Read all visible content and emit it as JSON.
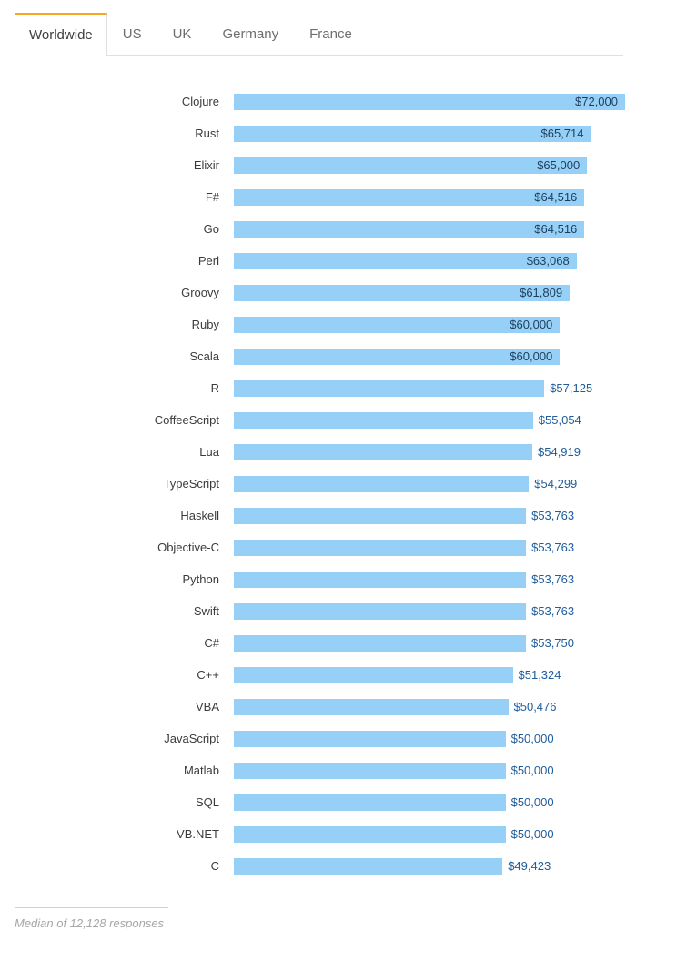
{
  "tabs": {
    "items": [
      {
        "label": "Worldwide",
        "active": true
      },
      {
        "label": "US",
        "active": false
      },
      {
        "label": "UK",
        "active": false
      },
      {
        "label": "Germany",
        "active": false
      },
      {
        "label": "France",
        "active": false
      }
    ]
  },
  "colors": {
    "accent_orange": "#f5a623",
    "bar_fill": "#97d0f6",
    "value_label_inside": "#1c3e5e",
    "value_label_outside": "#1f5c99",
    "category_label": "#3b3b3b",
    "tab_inactive": "#6e6e6e",
    "border": "#e0e0e0"
  },
  "footer": {
    "note": "Median of 12,128 responses"
  },
  "chart_data": {
    "type": "bar",
    "orientation": "horizontal",
    "title": "",
    "xlabel": "",
    "ylabel": "",
    "legend": false,
    "grid": false,
    "xlim": [
      0,
      72000
    ],
    "value_format": "USD with thousands separator, prefix $",
    "categories": [
      "Clojure",
      "Rust",
      "Elixir",
      "F#",
      "Go",
      "Perl",
      "Groovy",
      "Ruby",
      "Scala",
      "R",
      "CoffeeScript",
      "Lua",
      "TypeScript",
      "Haskell",
      "Objective-C",
      "Python",
      "Swift",
      "C#",
      "C++",
      "VBA",
      "JavaScript",
      "Matlab",
      "SQL",
      "VB.NET",
      "C"
    ],
    "values": [
      72000,
      65714,
      65000,
      64516,
      64516,
      63068,
      61809,
      60000,
      60000,
      57125,
      55054,
      54919,
      54299,
      53763,
      53763,
      53763,
      53763,
      53750,
      51324,
      50476,
      50000,
      50000,
      50000,
      50000,
      49423
    ],
    "formatted_values": [
      "$72,000",
      "$65,714",
      "$65,000",
      "$64,516",
      "$64,516",
      "$63,068",
      "$61,809",
      "$60,000",
      "$60,000",
      "$57,125",
      "$55,054",
      "$54,919",
      "$54,299",
      "$53,763",
      "$53,763",
      "$53,763",
      "$53,763",
      "$53,750",
      "$51,324",
      "$50,476",
      "$50,000",
      "$50,000",
      "$50,000",
      "$50,000",
      "$49,423"
    ],
    "label_inside": [
      true,
      true,
      true,
      true,
      true,
      true,
      true,
      true,
      true,
      false,
      false,
      false,
      false,
      false,
      false,
      false,
      false,
      false,
      false,
      false,
      false,
      false,
      false,
      false,
      false
    ],
    "note": "Median of 12,128 responses"
  }
}
